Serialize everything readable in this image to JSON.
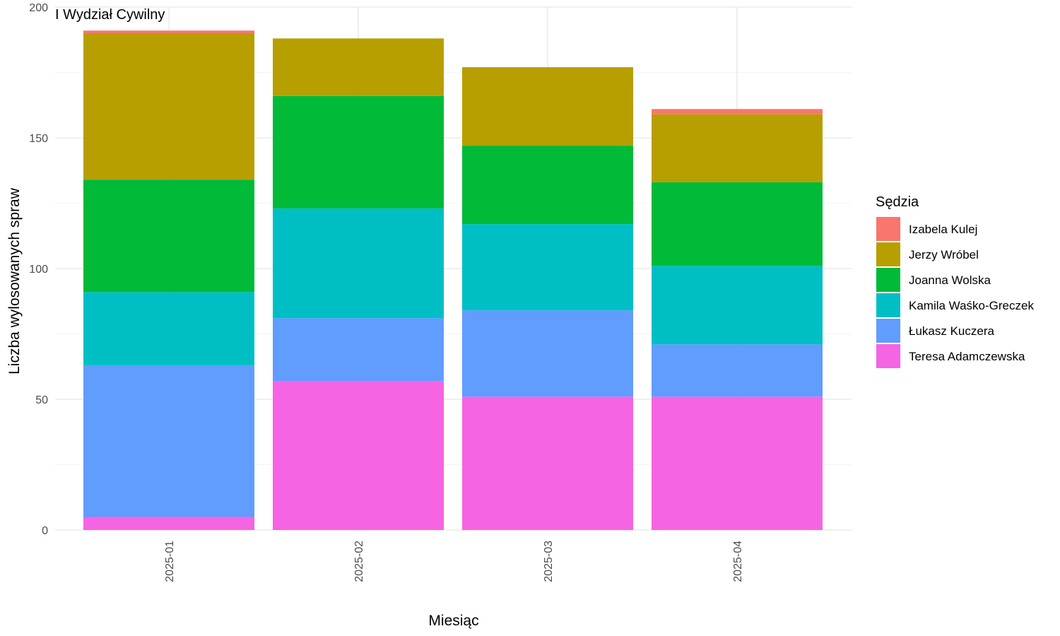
{
  "chart_data": {
    "type": "bar",
    "stacked": true,
    "title": "I Wydział Cywilny",
    "xlabel": "Miesiąc",
    "ylabel": "Liczba wylosowanych spraw",
    "ylim": [
      0,
      200
    ],
    "yticks": [
      0,
      50,
      100,
      150,
      200
    ],
    "grid": true,
    "legend_position": "right",
    "legend_title": "Sędzia",
    "categories": [
      "2025-01",
      "2025-02",
      "2025-03",
      "2025-04"
    ],
    "series": [
      {
        "name": "Teresa Adamczewska",
        "color": "#F564E3",
        "values": [
          5,
          57,
          51,
          51
        ]
      },
      {
        "name": "Łukasz Kuczera",
        "color": "#619CFF",
        "values": [
          58,
          24,
          33,
          20
        ]
      },
      {
        "name": "Kamila Waśko-Greczek",
        "color": "#00BFC4",
        "values": [
          28,
          42,
          33,
          30
        ]
      },
      {
        "name": "Joanna Wolska",
        "color": "#00BA38",
        "values": [
          43,
          43,
          30,
          32
        ]
      },
      {
        "name": "Jerzy Wróbel",
        "color": "#B79F00",
        "values": [
          56,
          22,
          30,
          26
        ]
      },
      {
        "name": "Izabela Kulej",
        "color": "#F8766D",
        "values": [
          1,
          0,
          0,
          2
        ]
      }
    ],
    "legend_order": [
      "Izabela Kulej",
      "Jerzy Wróbel",
      "Joanna Wolska",
      "Kamila Waśko-Greczek",
      "Łukasz Kuczera",
      "Teresa Adamczewska"
    ]
  }
}
